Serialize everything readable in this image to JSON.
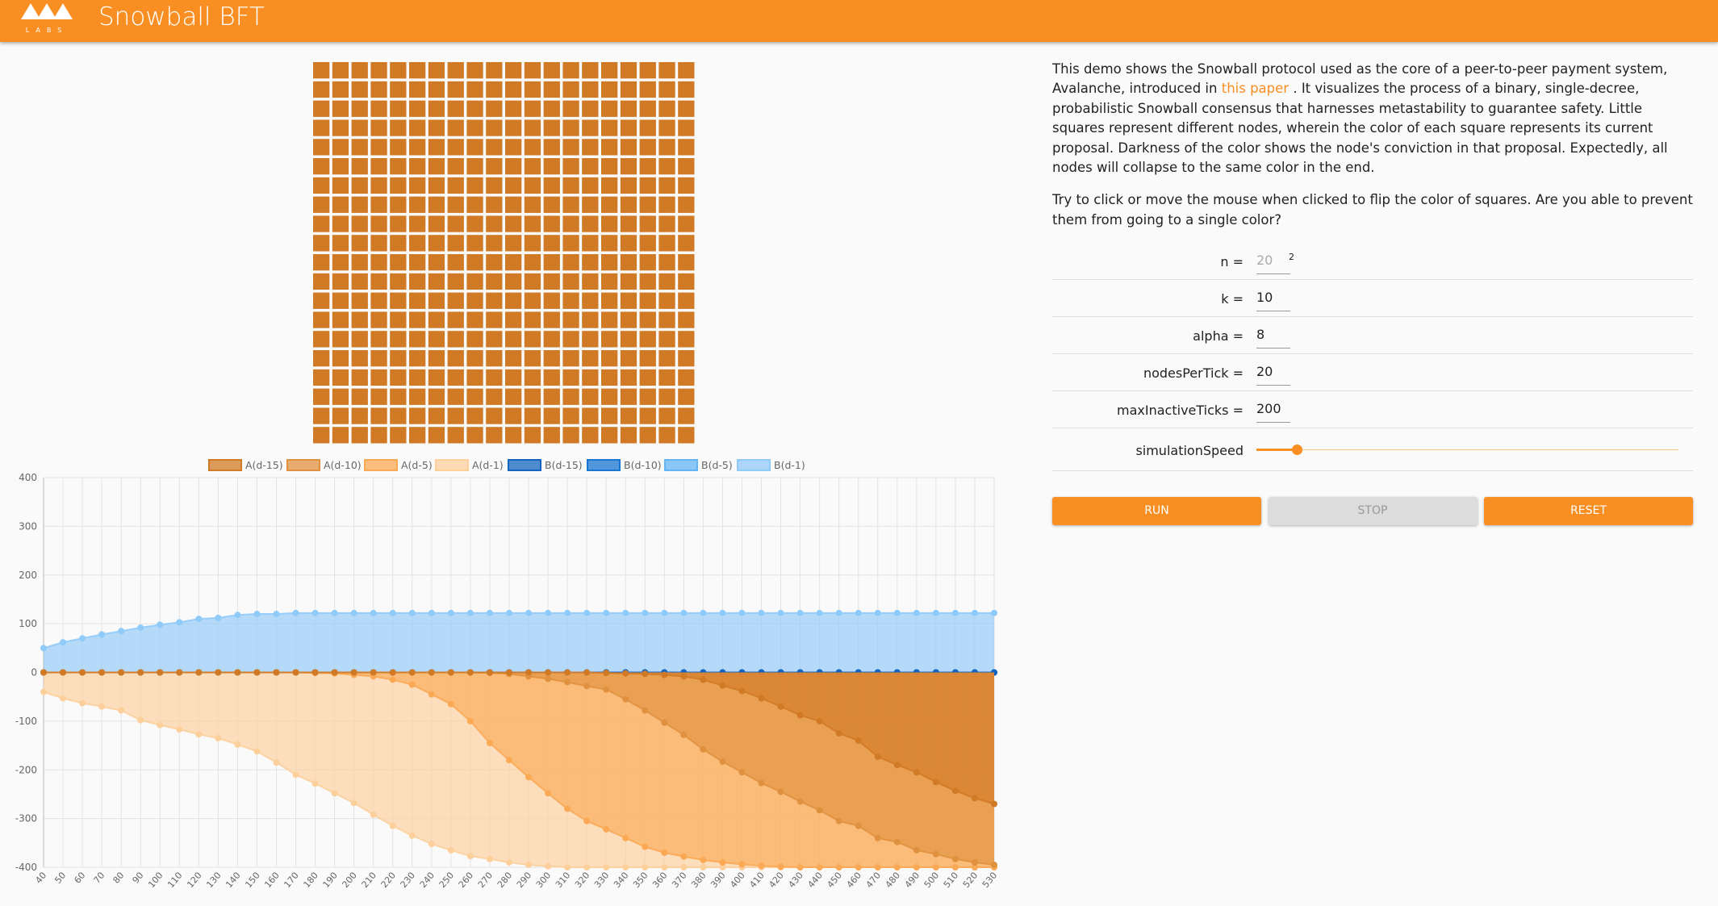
{
  "header": {
    "logo_text": "LABS",
    "title": "Snowball BFT"
  },
  "description": {
    "intro": {
      "before": "This demo shows the Snowball protocol used as the core of a peer-to-peer payment system, Avalanche, introduced in ",
      "link": "this paper",
      "after": " . It visualizes the process of a binary, single-decree, probabilistic Snowball consensus that harnesses metastability to guarantee safety. Little squares represent different nodes, wherein the color of each square represents its current proposal. Darkness of the color shows the node's conviction in that proposal. Expectedly, all nodes will collapse to the same color in the end."
    },
    "hint": "Try to click or move the mouse when clicked to flip the color of squares. Are you able to prevent them from going to a single color?"
  },
  "form": {
    "fields": [
      {
        "label": "n =",
        "value": "20",
        "superscript": "2"
      },
      {
        "label": "k =",
        "value": "10"
      },
      {
        "label": "alpha =",
        "value": "8"
      },
      {
        "label": "nodesPerTick =",
        "value": "20"
      },
      {
        "label": "maxInactiveTicks =",
        "value": "200"
      }
    ],
    "slider_label": "simulationSpeed"
  },
  "buttons": [
    "RUN",
    "STOP",
    "RESET"
  ],
  "chart_data": {
    "type": "line",
    "x": [
      40,
      50,
      60,
      70,
      80,
      90,
      100,
      110,
      120,
      130,
      140,
      150,
      160,
      170,
      180,
      190,
      200,
      210,
      220,
      230,
      240,
      250,
      260,
      270,
      280,
      290,
      300,
      310,
      320,
      330,
      340,
      350,
      360,
      370,
      380,
      390,
      400,
      410,
      420,
      430,
      440,
      450,
      460,
      470,
      480,
      490,
      500,
      510,
      520,
      530
    ],
    "xlim": [
      40,
      530
    ],
    "xticks": [
      40,
      50,
      60,
      70,
      80,
      90,
      100,
      110,
      120,
      130,
      140,
      150,
      160,
      170,
      180,
      190,
      200,
      210,
      220,
      230,
      240,
      250,
      260,
      270,
      280,
      290,
      300,
      310,
      320,
      330,
      340,
      350,
      360,
      370,
      380,
      390,
      400,
      410,
      420,
      430,
      440,
      450,
      460,
      470,
      480,
      490,
      500,
      510,
      520,
      530
    ],
    "ylim": [
      -400,
      400
    ],
    "yticks": [
      -400,
      -300,
      -200,
      -100,
      0,
      100,
      200,
      300,
      400
    ],
    "grid": true,
    "fill": true,
    "series": [
      {
        "name": "A(d-15)",
        "color": "#d17a26",
        "values": [
          0,
          0,
          0,
          0,
          0,
          0,
          0,
          0,
          0,
          0,
          0,
          0,
          0,
          0,
          0,
          0,
          0,
          0,
          0,
          0,
          0,
          0,
          0,
          0,
          0,
          0,
          0,
          0,
          0,
          -1,
          -2,
          -3,
          -5,
          -8,
          -15,
          -27,
          -38,
          -53,
          -70,
          -88,
          -100,
          -125,
          -140,
          -173,
          -190,
          -205,
          -225,
          -243,
          -258,
          -270
        ]
      },
      {
        "name": "A(d-10)",
        "color": "#e0913f",
        "values": [
          0,
          0,
          0,
          0,
          0,
          0,
          0,
          0,
          0,
          0,
          0,
          0,
          0,
          0,
          0,
          0,
          0,
          0,
          0,
          0,
          0,
          0,
          0,
          -1,
          -3,
          -8,
          -13,
          -20,
          -28,
          -35,
          -55,
          -78,
          -103,
          -128,
          -158,
          -183,
          -205,
          -227,
          -245,
          -265,
          -283,
          -305,
          -315,
          -340,
          -348,
          -365,
          -373,
          -383,
          -390,
          -395
        ]
      },
      {
        "name": "A(d-5)",
        "color": "#fba955",
        "values": [
          0,
          0,
          0,
          0,
          0,
          0,
          0,
          0,
          0,
          0,
          0,
          0,
          0,
          0,
          -1,
          -2,
          -5,
          -8,
          -15,
          -25,
          -45,
          -65,
          -100,
          -145,
          -180,
          -215,
          -248,
          -280,
          -305,
          -322,
          -340,
          -358,
          -370,
          -378,
          -385,
          -390,
          -394,
          -397,
          -399,
          -400,
          -400,
          -400,
          -400,
          -400,
          -400,
          -400,
          -400,
          -400,
          -400,
          -400
        ]
      },
      {
        "name": "A(d-1)",
        "color": "#fdcf9b",
        "values": [
          -40,
          -53,
          -63,
          -70,
          -78,
          -98,
          -108,
          -117,
          -127,
          -135,
          -148,
          -162,
          -185,
          -210,
          -228,
          -248,
          -268,
          -292,
          -315,
          -335,
          -352,
          -365,
          -377,
          -383,
          -390,
          -395,
          -398,
          -400,
          -400,
          -400,
          -400,
          -400,
          -400,
          -400,
          -400,
          -400,
          -400,
          -400,
          -400,
          -400,
          -400,
          -400,
          -400,
          -400,
          -400,
          -400,
          -400,
          -400,
          -400,
          -400
        ]
      },
      {
        "name": "B(d-15)",
        "color": "#1565c0",
        "values": [
          0,
          0,
          0,
          0,
          0,
          0,
          0,
          0,
          0,
          0,
          0,
          0,
          0,
          0,
          0,
          0,
          0,
          0,
          0,
          0,
          0,
          0,
          0,
          0,
          0,
          0,
          0,
          0,
          0,
          0,
          0,
          0,
          0,
          0,
          0,
          0,
          0,
          0,
          0,
          0,
          0,
          0,
          0,
          0,
          0,
          0,
          0,
          0,
          0,
          0
        ]
      },
      {
        "name": "B(d-10)",
        "color": "#1976d2",
        "values": [
          0,
          0,
          0,
          0,
          0,
          0,
          0,
          0,
          0,
          0,
          0,
          0,
          0,
          0,
          0,
          0,
          0,
          0,
          0,
          0,
          0,
          0,
          0,
          0,
          0,
          0,
          0,
          0,
          0,
          0,
          0,
          0,
          0,
          0,
          0,
          0,
          0,
          0,
          0,
          0,
          0,
          0,
          0,
          0,
          0,
          0,
          0,
          0,
          0,
          0
        ]
      },
      {
        "name": "B(d-5)",
        "color": "#64b5f6",
        "values": [
          0,
          0,
          0,
          0,
          0,
          0,
          0,
          0,
          0,
          0,
          0,
          0,
          0,
          0,
          0,
          0,
          0,
          0,
          0,
          0,
          0,
          0,
          0,
          0,
          0,
          0,
          0,
          0,
          0,
          0,
          0,
          0,
          0,
          0,
          0,
          0,
          0,
          0,
          0,
          0,
          0,
          0,
          0,
          0,
          0,
          0,
          0,
          0,
          0,
          0
        ]
      },
      {
        "name": "B(d-1)",
        "color": "#90caf9",
        "values": [
          50,
          62,
          70,
          78,
          85,
          92,
          98,
          103,
          110,
          112,
          118,
          120,
          120,
          122,
          122,
          122,
          122,
          122,
          122,
          122,
          122,
          122,
          122,
          122,
          122,
          122,
          122,
          122,
          122,
          122,
          122,
          122,
          122,
          122,
          122,
          122,
          122,
          122,
          122,
          122,
          122,
          122,
          122,
          122,
          122,
          122,
          122,
          122,
          122,
          122
        ]
      }
    ]
  }
}
